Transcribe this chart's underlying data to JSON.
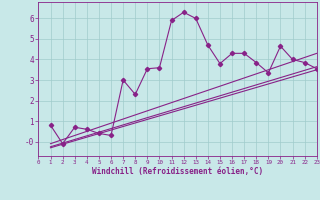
{
  "bg_color": "#c8e8e8",
  "grid_color": "#a0cccc",
  "line_color": "#882288",
  "xlabel": "Windchill (Refroidissement éolien,°C)",
  "xlim": [
    0,
    23
  ],
  "ylim": [
    -0.7,
    6.8
  ],
  "yticks": [
    0,
    1,
    2,
    3,
    4,
    5,
    6
  ],
  "ytick_labels": [
    "-0",
    "1",
    "2",
    "3",
    "4",
    "5",
    "6"
  ],
  "xticks": [
    0,
    1,
    2,
    3,
    4,
    5,
    6,
    7,
    8,
    9,
    10,
    11,
    12,
    13,
    14,
    15,
    16,
    17,
    18,
    19,
    20,
    21,
    22,
    23
  ],
  "main_x": [
    1,
    2,
    3,
    4,
    5,
    6,
    7,
    8,
    9,
    10,
    11,
    12,
    13,
    14,
    15,
    16,
    17,
    18,
    19,
    20,
    21,
    22,
    23
  ],
  "main_y": [
    0.8,
    -0.1,
    0.7,
    0.6,
    0.4,
    0.3,
    3.0,
    2.3,
    3.55,
    3.6,
    5.9,
    6.3,
    6.0,
    4.7,
    3.8,
    4.3,
    4.3,
    3.85,
    3.35,
    4.65,
    4.0,
    3.85,
    3.55
  ],
  "trend_lines": [
    {
      "x": [
        1,
        23
      ],
      "y": [
        -0.1,
        4.3
      ]
    },
    {
      "x": [
        1,
        23
      ],
      "y": [
        -0.25,
        3.65
      ]
    },
    {
      "x": [
        1,
        23
      ],
      "y": [
        -0.3,
        3.5
      ]
    }
  ],
  "figsize": [
    3.2,
    2.0
  ],
  "dpi": 100
}
